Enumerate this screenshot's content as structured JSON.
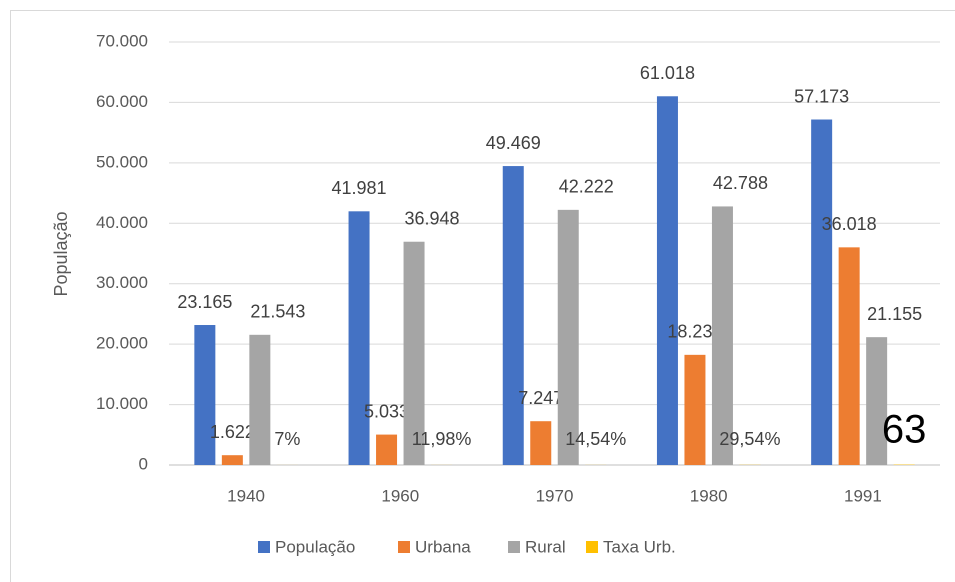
{
  "chart_data": {
    "type": "bar",
    "y_label": "População",
    "categories": [
      "1940",
      "1960",
      "1970",
      "1980",
      "1991"
    ],
    "series": [
      {
        "name": "População",
        "color": "#4472c4",
        "values": [
          23165,
          41981,
          49469,
          61018,
          57173
        ],
        "value_labels": [
          "23.165",
          "41.981",
          "49.469",
          "61.018",
          "57.173"
        ]
      },
      {
        "name": "Urbana",
        "color": "#ed7d31",
        "values": [
          1622,
          5033,
          7247,
          18230,
          36018
        ],
        "value_labels": [
          "1.622",
          "5.033",
          "7.247",
          "18.230",
          "36.018"
        ]
      },
      {
        "name": "Rural",
        "color": "#a5a5a5",
        "values": [
          21543,
          36948,
          42222,
          42788,
          21155
        ],
        "value_labels": [
          "21.543",
          "36.948",
          "42.222",
          "42.788",
          "21.155"
        ]
      },
      {
        "name": "Taxa Urb.",
        "color": "#ffc000",
        "values": [
          7,
          11.98,
          14.54,
          29.54,
          63
        ],
        "value_labels": [
          "7%",
          "11,98%",
          "14,54%",
          "29,54%",
          "63"
        ]
      }
    ],
    "ylim": [
      0,
      70000
    ],
    "yticks": [
      0,
      {
        "value": 10000,
        "label": "10.000"
      },
      {
        "value": 20000,
        "label": "20.000"
      },
      {
        "value": 30000,
        "label": "30.000"
      },
      {
        "value": 40000,
        "label": "40.000"
      },
      {
        "value": 50000,
        "label": "50.000"
      },
      {
        "value": 60000,
        "label": "60.000"
      },
      {
        "value": 70000,
        "label": "70.000"
      }
    ],
    "grid": true,
    "legend": "bottom"
  }
}
